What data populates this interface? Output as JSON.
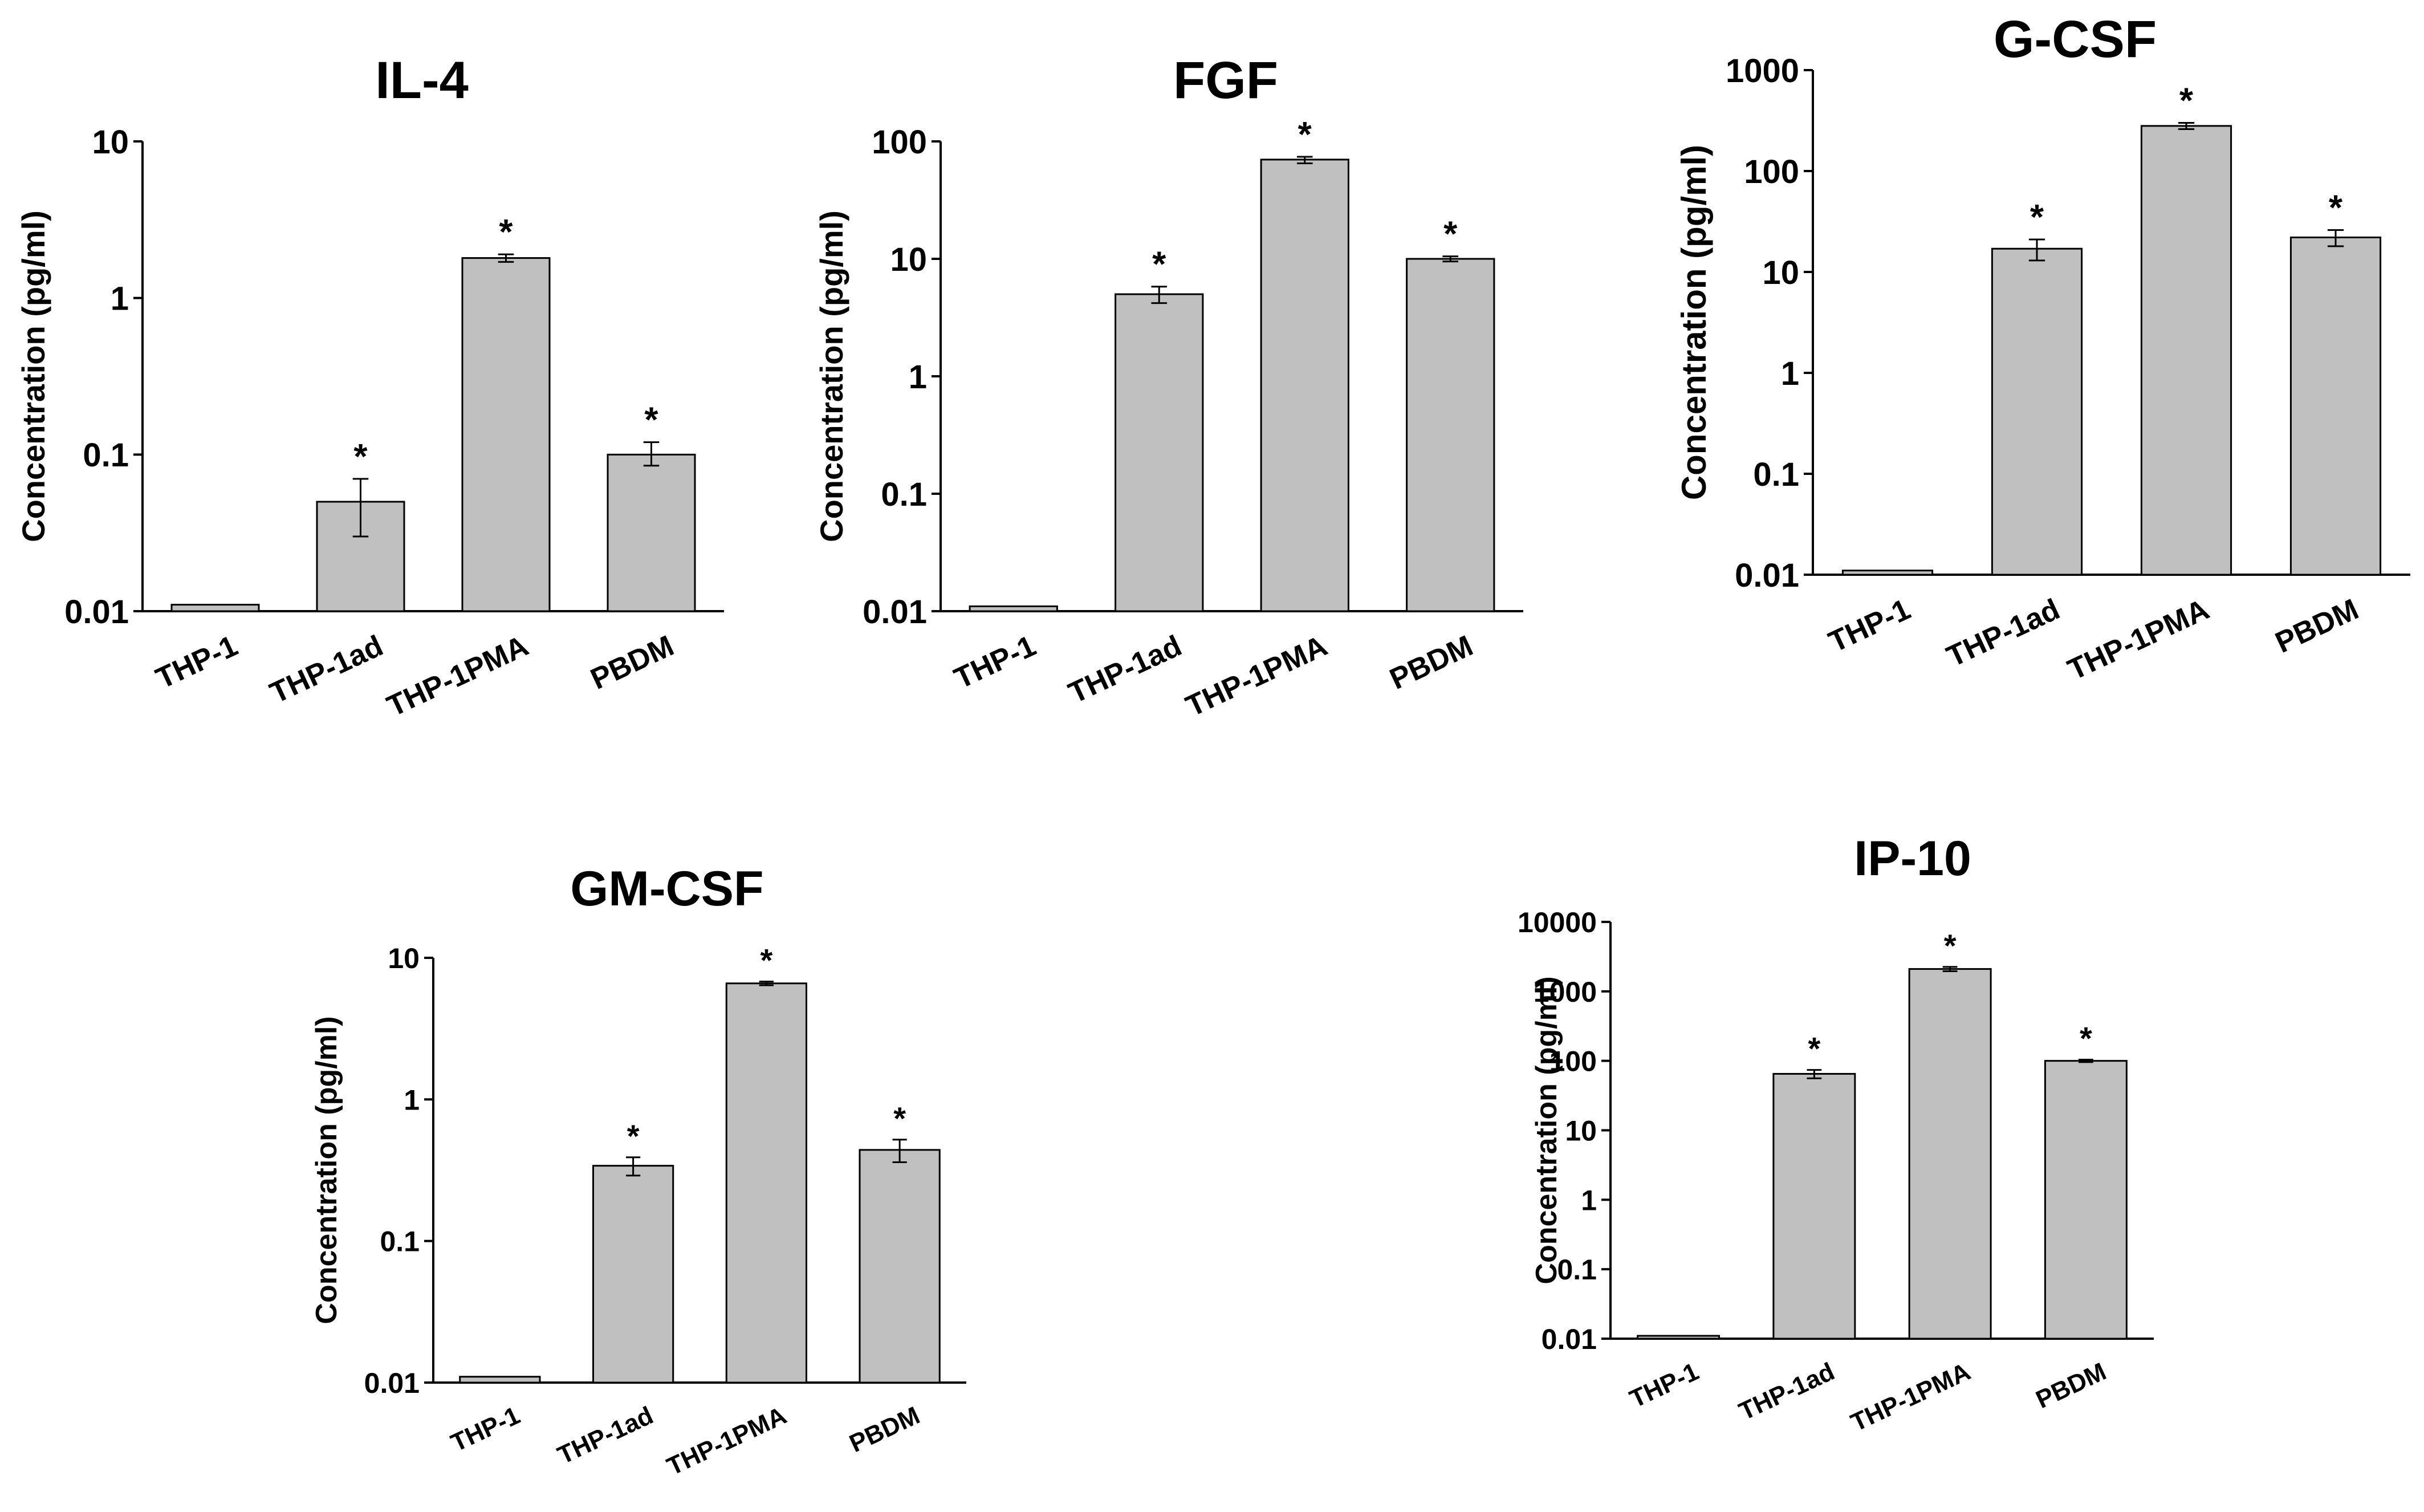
{
  "chart_data": [
    {
      "type": "bar",
      "title": "IL-4",
      "ylabel": "Concentration (pg/ml)",
      "xlabel": "",
      "yscale": "log",
      "ylim": [
        0.01,
        10
      ],
      "yticks": [
        "0.01",
        "0.1",
        "1",
        "10"
      ],
      "categories": [
        "THP-1",
        "THP-1ad",
        "THP-1PMA",
        "PBDM"
      ],
      "values": [
        0.011,
        0.05,
        1.8,
        0.1
      ],
      "error_low": [
        0.011,
        0.03,
        1.7,
        0.085
      ],
      "error_high": [
        0.011,
        0.07,
        1.9,
        0.12
      ],
      "annotations": [
        "",
        "*",
        "*",
        "*"
      ],
      "bar_color": "#c0c0c0"
    },
    {
      "type": "bar",
      "title": "FGF",
      "ylabel": "Concentration (pg/ml)",
      "xlabel": "",
      "yscale": "log",
      "ylim": [
        0.01,
        100
      ],
      "yticks": [
        "0.01",
        "0.1",
        "1",
        "10",
        "100"
      ],
      "categories": [
        "THP-1",
        "THP-1ad",
        "THP-1PMA",
        "PBDM"
      ],
      "values": [
        0.011,
        5,
        70,
        10
      ],
      "error_low": [
        0.011,
        4.2,
        65,
        9.5
      ],
      "error_high": [
        0.011,
        5.8,
        74,
        10.5
      ],
      "annotations": [
        "",
        "*",
        "*",
        "*"
      ],
      "bar_color": "#c0c0c0"
    },
    {
      "type": "bar",
      "title": "G-CSF",
      "ylabel": "Concentration (pg/ml)",
      "xlabel": "",
      "yscale": "log",
      "ylim": [
        0.01,
        1000
      ],
      "yticks": [
        "0.01",
        "0.1",
        "1",
        "10",
        "100",
        "1000"
      ],
      "categories": [
        "THP-1",
        "THP-1ad",
        "THP-1PMA",
        "PBDM"
      ],
      "values": [
        0.011,
        17,
        280,
        22
      ],
      "error_low": [
        0.011,
        13,
        260,
        18
      ],
      "error_high": [
        0.011,
        21,
        300,
        26
      ],
      "annotations": [
        "",
        "*",
        "*",
        "*"
      ],
      "bar_color": "#c0c0c0"
    },
    {
      "type": "bar",
      "title": "GM-CSF",
      "ylabel": "Concentration (pg/ml)",
      "xlabel": "",
      "yscale": "log",
      "ylim": [
        0.01,
        10
      ],
      "yticks": [
        "0.01",
        "0.1",
        "1",
        "10"
      ],
      "categories": [
        "THP-1",
        "THP-1ad",
        "THP-1PMA",
        "PBDM"
      ],
      "values": [
        0.011,
        0.34,
        6.6,
        0.44
      ],
      "error_low": [
        0.011,
        0.29,
        6.4,
        0.36
      ],
      "error_high": [
        0.011,
        0.39,
        6.8,
        0.52
      ],
      "annotations": [
        "",
        "*",
        "*",
        "*"
      ],
      "bar_color": "#c0c0c0"
    },
    {
      "type": "bar",
      "title": "IP-10",
      "ylabel": "Concentration (pg/ml)",
      "xlabel": "",
      "yscale": "log",
      "ylim": [
        0.01,
        10000
      ],
      "yticks": [
        "0.01",
        "0.1",
        "1",
        "10",
        "100",
        "1000",
        "10000"
      ],
      "categories": [
        "THP-1",
        "THP-1ad",
        "THP-1PMA",
        "PBDM"
      ],
      "values": [
        0.011,
        65,
        2100,
        100
      ],
      "error_low": [
        0.011,
        56,
        1950,
        96
      ],
      "error_high": [
        0.011,
        74,
        2250,
        104
      ],
      "annotations": [
        "",
        "*",
        "*",
        "*"
      ],
      "bar_color": "#c0c0c0"
    }
  ]
}
